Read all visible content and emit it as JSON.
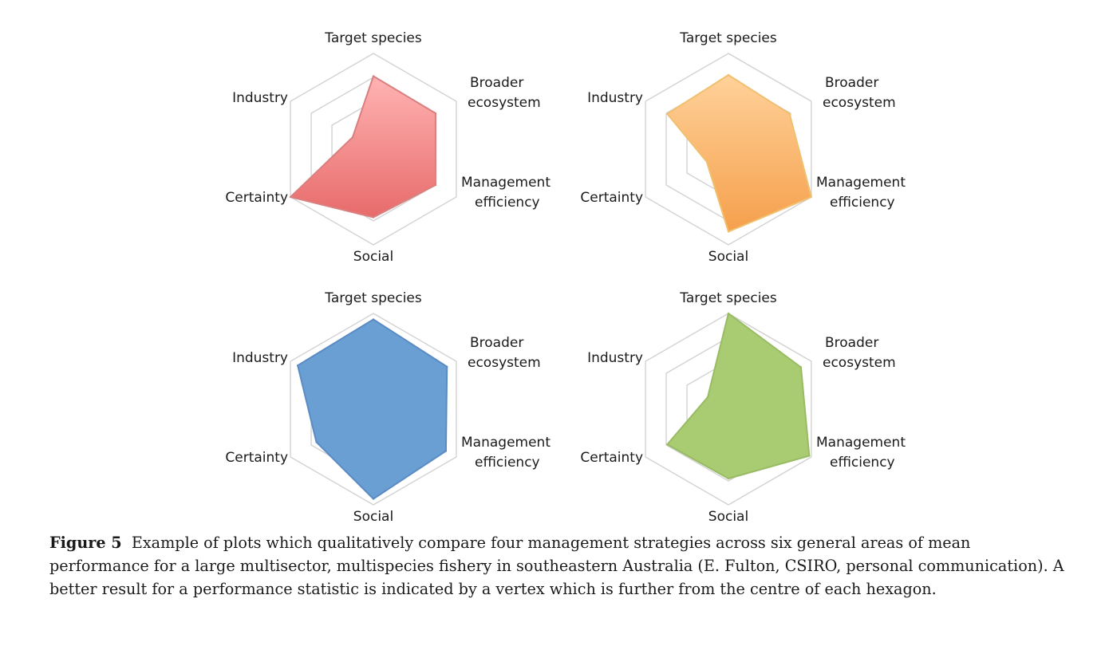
{
  "chart_data": [
    {
      "type": "radar",
      "axes": [
        "Target species",
        "Broader ecosystem",
        "Management efficiency",
        "Social",
        "Certainty",
        "Industry"
      ],
      "scale": [
        0,
        4
      ],
      "rings": 4,
      "values": [
        3.05,
        3.0,
        3.0,
        2.85,
        4.0,
        1.0
      ],
      "colors": {
        "fill": "#e86b6b",
        "fill_light": "#ffb3b3",
        "stroke": "#d97f7f"
      }
    },
    {
      "type": "radar",
      "axes": [
        "Target species",
        "Broader ecosystem",
        "Management efficiency",
        "Social",
        "Certainty",
        "Industry"
      ],
      "scale": [
        0,
        4
      ],
      "rings": 4,
      "values": [
        3.1,
        2.95,
        4.0,
        3.45,
        1.05,
        2.95
      ],
      "colors": {
        "fill": "#f5a04c",
        "fill_light": "#ffd199",
        "stroke": "#f0c070"
      }
    },
    {
      "type": "radar",
      "axes": [
        "Target species",
        "Broader ecosystem",
        "Management efficiency",
        "Social",
        "Certainty",
        "Industry"
      ],
      "scale": [
        0,
        4
      ],
      "rings": 4,
      "values": [
        3.75,
        3.55,
        3.5,
        3.75,
        2.75,
        3.65
      ],
      "colors": {
        "fill": "#6a9fd4",
        "fill_light": "#6a9fd4",
        "stroke": "#5b8bc4"
      }
    },
    {
      "type": "radar",
      "axes": [
        "Target species",
        "Broader ecosystem",
        "Management efficiency",
        "Social",
        "Certainty",
        "Industry"
      ],
      "scale": [
        0,
        4
      ],
      "rings": 4,
      "values": [
        4.0,
        3.5,
        3.9,
        2.9,
        2.95,
        1.0
      ],
      "colors": {
        "fill": "#a9cc73",
        "fill_light": "#a9cc73",
        "stroke": "#98bb63"
      }
    }
  ],
  "caption": {
    "label": "Figure 5",
    "text": "Example of plots which qualitatively compare four management strategies across six general areas of mean performance for a large multisector, multispecies fishery in southeastern Australia (E. Fulton, CSIRO, personal communication). A better result for a performance statistic is indicated by a vertex which is further from the centre of each hexagon."
  }
}
